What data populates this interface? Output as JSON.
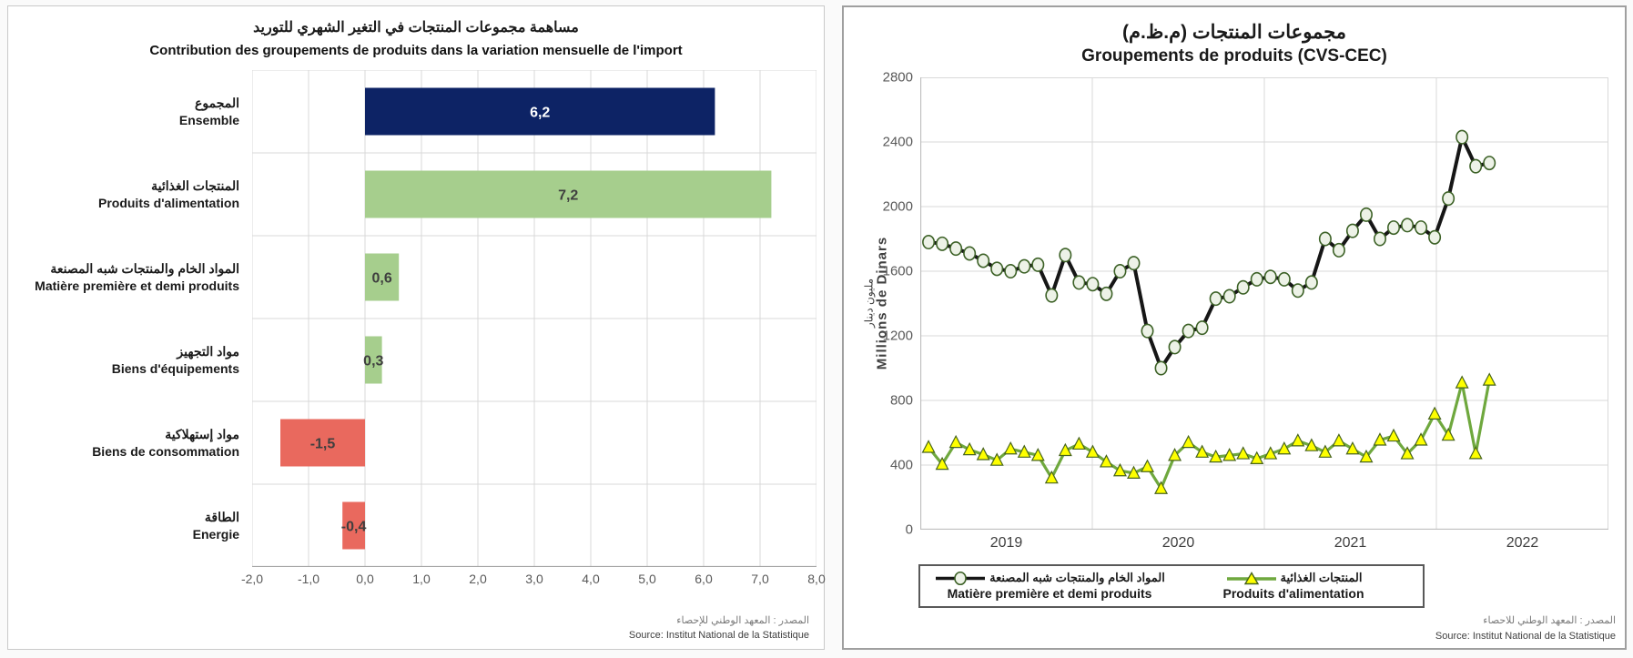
{
  "chart_data": [
    {
      "id": "import-contribution",
      "type": "bar",
      "orientation": "horizontal",
      "title_ar": "مساهمة مجموعات المنتجات في التغير الشهري للتوريد",
      "title_fr": "Contribution des groupements de produits dans la variation mensuelle de l'import",
      "categories": [
        {
          "ar": "المجموع",
          "fr": "Ensemble"
        },
        {
          "ar": "المنتجات الغذائية",
          "fr": "Produits d'alimentation"
        },
        {
          "ar": "المواد الخام والمنتجات شبه المصنعة",
          "fr": "Matière première et demi produits"
        },
        {
          "ar": "مواد التجهيز",
          "fr": "Biens d'équipements"
        },
        {
          "ar": "مواد إستهلاكية",
          "fr": "Biens de consommation"
        },
        {
          "ar": "الطاقة",
          "fr": "Energie"
        }
      ],
      "values": [
        6.2,
        7.2,
        0.6,
        0.3,
        -1.5,
        -0.4
      ],
      "value_labels": [
        "6,2",
        "7,2",
        "0,6",
        "0,3",
        "-1,5",
        "-0,4"
      ],
      "bar_colors": [
        "#0d2365",
        "#a6ce8d",
        "#a6ce8d",
        "#a6ce8d",
        "#e9695e",
        "#e9695e"
      ],
      "value_label_colors": [
        "#ffffff",
        "#3f3f3f",
        "#3f3f3f",
        "#3f3f3f",
        "#3f3f3f",
        "#3f3f3f"
      ],
      "xlim": [
        -2,
        8
      ],
      "xtick_step": 1,
      "xtick_labels": [
        "-2,0",
        "-1,0",
        "0,0",
        "1,0",
        "2,0",
        "3,0",
        "4,0",
        "5,0",
        "6,0",
        "7,0",
        "8,0"
      ],
      "grid": true,
      "gridline_color": "#d9d9d9",
      "source_ar": "المصدر : المعهد الوطني للإحصاء",
      "source_fr": "Source: Institut National de la Statistique"
    },
    {
      "id": "groupements-cvs-cec",
      "type": "line",
      "title_ar": "مجموعات المنتجات (م.ظ.م)",
      "title_fr": "Groupements de produits (CVS-CEC)",
      "ylabel_ar": "مليون دينار",
      "ylabel_fr": "Millions de Dinars",
      "ylim": [
        0,
        2800
      ],
      "yticks": [
        0,
        400,
        800,
        1200,
        1600,
        2000,
        2400,
        2800
      ],
      "xtick_labels": [
        "2019",
        "2020",
        "2021",
        "2022"
      ],
      "grid": true,
      "gridline_color": "#d9d9d9",
      "legend_position": "bottom",
      "series": [
        {
          "name_ar": "المواد الخام والمنتجات شبه المصنعة",
          "name_fr": "Matière première et demi produits",
          "line_color": "#161616",
          "marker": "circle",
          "marker_fill": "#edf2e7",
          "marker_stroke": "#3c6126",
          "values": [
            1780,
            1770,
            1740,
            1710,
            1665,
            1615,
            1600,
            1630,
            1640,
            1450,
            1700,
            1530,
            1520,
            1460,
            1600,
            1650,
            1230,
            1000,
            1130,
            1230,
            1250,
            1430,
            1445,
            1500,
            1550,
            1565,
            1550,
            1480,
            1530,
            1800,
            1730,
            1850,
            1950,
            1800,
            1870,
            1885,
            1870,
            1810,
            2050,
            2430,
            2250,
            2270
          ]
        },
        {
          "name_ar": "المنتجات الغذائية",
          "name_fr": "Produits d'alimentation",
          "line_color": "#6fa83e",
          "marker": "triangle",
          "marker_fill": "#feff00",
          "marker_stroke": "#47641d",
          "values": [
            510,
            405,
            540,
            495,
            465,
            430,
            500,
            480,
            460,
            320,
            490,
            530,
            480,
            420,
            365,
            350,
            390,
            255,
            460,
            540,
            480,
            450,
            460,
            470,
            440,
            470,
            500,
            550,
            520,
            480,
            550,
            500,
            450,
            555,
            580,
            470,
            555,
            716,
            585,
            909,
            471,
            926
          ]
        }
      ],
      "source_ar": "المصدر : المعهد الوطني للاحصاء",
      "source_fr": "Source: Institut National de la Statistique"
    }
  ]
}
